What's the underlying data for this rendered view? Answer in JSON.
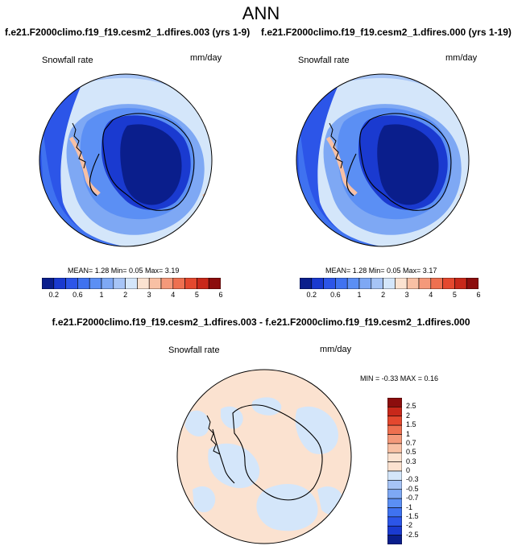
{
  "season": "ANN",
  "panels": [
    {
      "case_title": "f.e21.F2000climo.f19_f19.cesm2_1.dfires.003 (yrs 1-9)",
      "variable": "Snowfall rate",
      "units": "mm/day",
      "stats": "MEAN=   1.28  Min=   0.05  Max=   3.19"
    },
    {
      "case_title": "f.e21.F2000climo.f19_f19.cesm2_1.dfires.000 (yrs 1-19)",
      "variable": "Snowfall rate",
      "units": "mm/day",
      "stats": "MEAN=   1.28  Min=   0.05  Max=   3.17"
    }
  ],
  "top_colorbar": {
    "colors": [
      "#0a1e8c",
      "#1a3ad0",
      "#2c55e8",
      "#3f72f0",
      "#5b8ff4",
      "#7ea8f4",
      "#a6c4f6",
      "#d4e6fa",
      "#fbe2d0",
      "#f8c0a4",
      "#f4997a",
      "#ee7050",
      "#e4482e",
      "#c8281a",
      "#8c0d0d"
    ],
    "tick_labels": [
      "0.2",
      "0.6",
      "1",
      "2",
      "3",
      "4",
      "5",
      "6"
    ]
  },
  "difference": {
    "title": "f.e21.F2000climo.f19_f19.cesm2_1.dfires.003 - f.e21.F2000climo.f19_f19.cesm2_1.dfires.000",
    "variable": "Snowfall rate",
    "units": "mm/day",
    "stats": "MIN =  -0.33 MAX =   0.16",
    "colorbar": {
      "colors": [
        "#8c0d0d",
        "#c8281a",
        "#e4482e",
        "#ee7050",
        "#f4997a",
        "#f8c0a4",
        "#fbe2d0",
        "#d4e6fa",
        "#a6c4f6",
        "#7ea8f4",
        "#5b8ff4",
        "#3f72f0",
        "#2c55e8",
        "#1a3ad0",
        "#0a1e8c"
      ],
      "tick_labels": [
        "2.5",
        "2",
        "1.5",
        "1",
        "0.7",
        "0.5",
        "0.3",
        "0",
        "-0.3",
        "-0.5",
        "-0.7",
        "-1",
        "-1.5",
        "-2",
        "-2.5"
      ]
    }
  }
}
